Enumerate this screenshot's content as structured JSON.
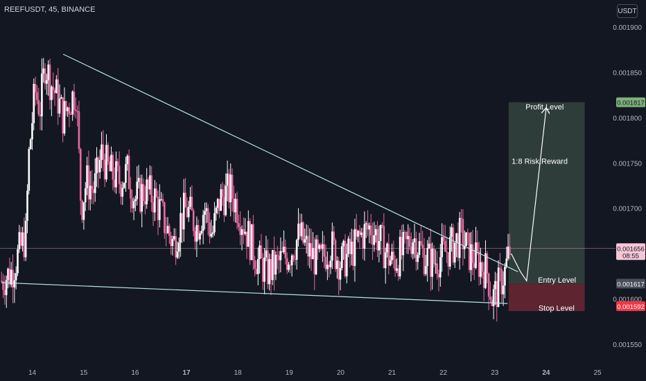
{
  "header": {
    "symbol": "REEFUSDT, 45, BINANCE",
    "currency": "USDT"
  },
  "colors": {
    "background": "#131722",
    "up": "#ffffff",
    "down": "#e86aa0",
    "trendline": "#b7e4e7",
    "profit_zone": "#2f3d3a",
    "stop_zone": "#5e2430",
    "axis_text": "#b2b5be",
    "badge_profit": "#7fb07a",
    "badge_entry": "#4a4e5a",
    "badge_stop": "#f23645",
    "badge_price": "#f7c6d6"
  },
  "chart_data": {
    "type": "candlestick",
    "title": "REEFUSDT, 45, BINANCE",
    "ylabel": "USDT",
    "ylim": [
      0.00153,
      0.00192
    ],
    "x_ticks": [
      "14",
      "15",
      "16",
      "17",
      "18",
      "19",
      "20",
      "21",
      "22",
      "23",
      "24",
      "25"
    ],
    "y_ticks": [
      "0.001900",
      "0.001850",
      "0.001800",
      "0.001750",
      "0.001700",
      "0.001600",
      "0.001550"
    ],
    "price_path": [
      [
        13.4,
        0.00162
      ],
      [
        13.6,
        0.00163
      ],
      [
        13.8,
        0.00166
      ],
      [
        13.88,
        0.00167
      ],
      [
        13.92,
        0.00175
      ],
      [
        14.0,
        0.0018
      ],
      [
        14.05,
        0.00183
      ],
      [
        14.15,
        0.00181
      ],
      [
        14.25,
        0.00186
      ],
      [
        14.35,
        0.00184
      ],
      [
        14.5,
        0.00182
      ],
      [
        14.6,
        0.0018
      ],
      [
        14.75,
        0.00182
      ],
      [
        14.85,
        0.00183
      ],
      [
        14.95,
        0.0017
      ],
      [
        15.05,
        0.00173
      ],
      [
        15.2,
        0.00172
      ],
      [
        15.35,
        0.00176
      ],
      [
        15.5,
        0.00174
      ],
      [
        15.7,
        0.00173
      ],
      [
        15.85,
        0.00174
      ],
      [
        16.0,
        0.00171
      ],
      [
        16.2,
        0.00172
      ],
      [
        16.4,
        0.00171
      ],
      [
        16.6,
        0.00168
      ],
      [
        16.75,
        0.00166
      ],
      [
        16.9,
        0.00169
      ],
      [
        17.0,
        0.0017
      ],
      [
        17.2,
        0.00168
      ],
      [
        17.35,
        0.0017
      ],
      [
        17.5,
        0.00167
      ],
      [
        17.65,
        0.00171
      ],
      [
        17.85,
        0.00172
      ],
      [
        18.0,
        0.0017
      ],
      [
        18.2,
        0.00167
      ],
      [
        18.4,
        0.00164
      ],
      [
        18.6,
        0.00163
      ],
      [
        18.8,
        0.00164
      ],
      [
        19.0,
        0.00165
      ],
      [
        19.2,
        0.00167
      ],
      [
        19.4,
        0.00165
      ],
      [
        19.6,
        0.00164
      ],
      [
        19.8,
        0.00166
      ],
      [
        20.0,
        0.00164
      ],
      [
        20.2,
        0.00165
      ],
      [
        20.4,
        0.00167
      ],
      [
        20.6,
        0.00168
      ],
      [
        20.8,
        0.00166
      ],
      [
        21.0,
        0.00164
      ],
      [
        21.2,
        0.00165
      ],
      [
        21.4,
        0.00167
      ],
      [
        21.6,
        0.00165
      ],
      [
        21.8,
        0.00164
      ],
      [
        22.0,
        0.00165
      ],
      [
        22.2,
        0.00166
      ],
      [
        22.35,
        0.00167
      ],
      [
        22.5,
        0.00165
      ],
      [
        22.7,
        0.00164
      ],
      [
        22.85,
        0.00163
      ],
      [
        22.95,
        0.0016
      ],
      [
        23.05,
        0.00161
      ],
      [
        23.2,
        0.00163
      ],
      [
        23.3,
        0.001656
      ]
    ],
    "trendlines": [
      {
        "name": "upper",
        "from": [
          14.6,
          0.00187
        ],
        "to": [
          23.45,
          0.00163
        ]
      },
      {
        "name": "lower",
        "from": [
          13.4,
          0.001618
        ],
        "to": [
          23.25,
          0.001595
        ]
      }
    ],
    "zones": {
      "profit": {
        "from_x": 23.27,
        "to_x": 24.75,
        "top": 0.001817,
        "bottom": 0.001617
      },
      "stop": {
        "from_x": 23.27,
        "to_x": 24.75,
        "top": 0.001617,
        "bottom": 0.001592
      }
    },
    "projection": [
      [
        23.32,
        0.00165
      ],
      [
        23.5,
        0.00163
      ],
      [
        23.62,
        0.00162
      ],
      [
        24.0,
        0.00181
      ]
    ],
    "current_price": 0.001656,
    "annotations": {
      "profit_label": "Profit Level",
      "risk_reward": "1:8 Risk:Reward",
      "entry_label": "Entry Level",
      "stop_label": "Stop Level"
    },
    "price_badges": [
      {
        "name": "profit",
        "value": "0.001817"
      },
      {
        "name": "current",
        "value": "0.001656",
        "countdown": "08:55"
      },
      {
        "name": "entry",
        "value": "0.001617"
      },
      {
        "name": "stop",
        "value": "0.001592"
      }
    ]
  }
}
